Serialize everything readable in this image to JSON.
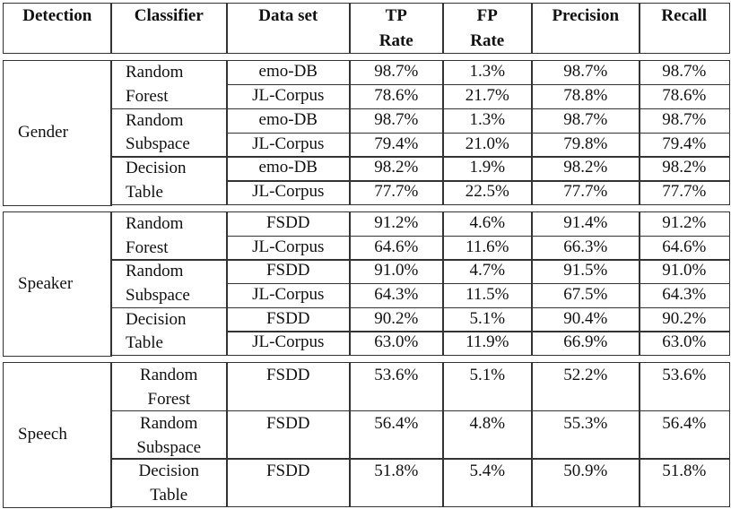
{
  "header": {
    "detection": "Detection",
    "classifier": "Classifier",
    "dataset": "Data set",
    "tp_line1": "TP",
    "tp_line2": "Rate",
    "fp_line1": "FP",
    "fp_line2": "Rate",
    "precision": "Precision",
    "recall": "Recall"
  },
  "groups": [
    {
      "detection": "Gender",
      "classifiers": [
        {
          "line1": "Random",
          "line2": "Forest",
          "rows": [
            {
              "dataset": "emo-DB",
              "tp": "98.7%",
              "fp": "1.3%",
              "precision": "98.7%",
              "recall": "98.7%"
            },
            {
              "dataset": "JL-Corpus",
              "tp": "78.6%",
              "fp": "21.7%",
              "precision": "78.8%",
              "recall": "78.6%"
            }
          ]
        },
        {
          "line1": "Random",
          "line2": "Subspace",
          "rows": [
            {
              "dataset": "emo-DB",
              "tp": "98.7%",
              "fp": "1.3%",
              "precision": "98.7%",
              "recall": "98.7%"
            },
            {
              "dataset": "JL-Corpus",
              "tp": "79.4%",
              "fp": "21.0%",
              "precision": "79.8%",
              "recall": "79.4%"
            }
          ]
        },
        {
          "line1": "Decision",
          "line2": "Table",
          "rows": [
            {
              "dataset": "emo-DB",
              "tp": "98.2%",
              "fp": "1.9%",
              "precision": "98.2%",
              "recall": "98.2%"
            },
            {
              "dataset": "JL-Corpus",
              "tp": "77.7%",
              "fp": "22.5%",
              "precision": "77.7%",
              "recall": "77.7%"
            }
          ]
        }
      ]
    },
    {
      "detection": "Speaker",
      "classifiers": [
        {
          "line1": "Random",
          "line2": "Forest",
          "rows": [
            {
              "dataset": "FSDD",
              "tp": "91.2%",
              "fp": "4.6%",
              "precision": "91.4%",
              "recall": "91.2%"
            },
            {
              "dataset": "JL-Corpus",
              "tp": "64.6%",
              "fp": "11.6%",
              "precision": "66.3%",
              "recall": "64.6%"
            }
          ]
        },
        {
          "line1": "Random",
          "line2": "Subspace",
          "rows": [
            {
              "dataset": "FSDD",
              "tp": "91.0%",
              "fp": "4.7%",
              "precision": "91.5%",
              "recall": "91.0%"
            },
            {
              "dataset": "JL-Corpus",
              "tp": "64.3%",
              "fp": "11.5%",
              "precision": "67.5%",
              "recall": "64.3%"
            }
          ]
        },
        {
          "line1": "Decision",
          "line2": "Table",
          "rows": [
            {
              "dataset": "FSDD",
              "tp": "90.2%",
              "fp": "5.1%",
              "precision": "90.4%",
              "recall": "90.2%"
            },
            {
              "dataset": "JL-Corpus",
              "tp": "63.0%",
              "fp": "11.9%",
              "precision": "66.9%",
              "recall": "63.0%"
            }
          ]
        }
      ]
    },
    {
      "detection": "Speech",
      "classifiers": [
        {
          "line1": "Random",
          "line2": "Forest",
          "rows": [
            {
              "dataset": "FSDD",
              "tp": "53.6%",
              "fp": "5.1%",
              "precision": "52.2%",
              "recall": "53.6%"
            }
          ]
        },
        {
          "line1": "Random",
          "line2": "Subspace",
          "rows": [
            {
              "dataset": "FSDD",
              "tp": "56.4%",
              "fp": "4.8%",
              "precision": "55.3%",
              "recall": "56.4%"
            }
          ]
        },
        {
          "line1": "Decision",
          "line2": "Table",
          "rows": [
            {
              "dataset": "FSDD",
              "tp": "51.8%",
              "fp": "5.4%",
              "precision": "50.9%",
              "recall": "51.8%"
            }
          ]
        }
      ]
    }
  ]
}
